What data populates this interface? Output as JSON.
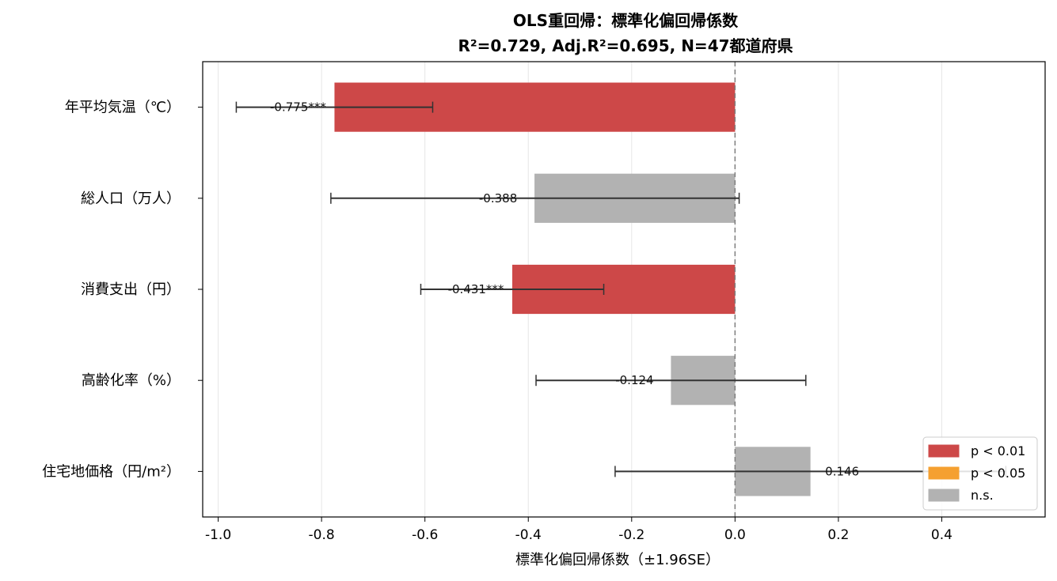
{
  "chart_data": {
    "type": "bar",
    "orientation": "horizontal",
    "title": "OLS重回帰：標準化偏回帰係数",
    "subtitle": "R²=0.729, Adj.R²=0.695, N=47都道府県",
    "xlabel": "標準化偏回帰係数（±1.96SE）",
    "ylabel": "",
    "xlim": [
      -1.03,
      0.6
    ],
    "xticks": [
      -1.0,
      -0.8,
      -0.6,
      -0.4,
      -0.2,
      0.0,
      0.2,
      0.4
    ],
    "xtick_labels": [
      "-1.0",
      "-0.8",
      "-0.6",
      "-0.4",
      "-0.2",
      "0.0",
      "0.2",
      "0.4"
    ],
    "grid": "vertical",
    "reference_line": 0.0,
    "legend_placement": "lower-right",
    "categories": [
      "年平均気温（℃）",
      "総人口（万人）",
      "消費支出（円）",
      "高齢化率（%）",
      "住宅地価格（円/m²）"
    ],
    "values": [
      -0.775,
      -0.388,
      -0.431,
      -0.124,
      0.146
    ],
    "ci_low": [
      -0.965,
      -0.782,
      -0.608,
      -0.385,
      -0.232
    ],
    "ci_high": [
      -0.585,
      0.008,
      -0.254,
      0.137,
      0.524
    ],
    "significance": [
      "p01",
      "ns",
      "p01",
      "ns",
      "ns"
    ],
    "value_labels": [
      "-0.775***",
      "-0.388",
      "-0.431***",
      "-0.124",
      "0.146"
    ],
    "legend": [
      {
        "key": "p01",
        "label": "p < 0.01",
        "color": "#cd4848"
      },
      {
        "key": "p05",
        "label": "p < 0.05",
        "color": "#f5a030"
      },
      {
        "key": "ns",
        "label": "n.s.",
        "color": "#b2b2b2"
      }
    ]
  }
}
